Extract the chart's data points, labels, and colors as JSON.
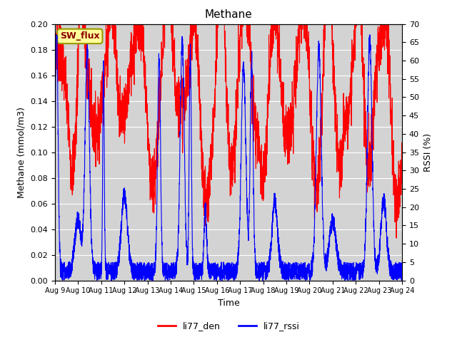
{
  "title": "Methane",
  "xlabel": "Time",
  "ylabel_left": "Methane (mmol/m3)",
  "ylabel_right": "RSSI (%)",
  "ylim_left": [
    0.0,
    0.2
  ],
  "ylim_right": [
    0,
    70
  ],
  "yticks_left": [
    0.0,
    0.02,
    0.04,
    0.06,
    0.08,
    0.1,
    0.12,
    0.14,
    0.16,
    0.18,
    0.2
  ],
  "yticks_right": [
    0,
    5,
    10,
    15,
    20,
    25,
    30,
    35,
    40,
    45,
    50,
    55,
    60,
    65,
    70
  ],
  "xtick_labels": [
    "Aug 9",
    "Aug 10",
    "Aug 11",
    "Aug 12",
    "Aug 13",
    "Aug 14",
    "Aug 15",
    "Aug 16",
    "Aug 17",
    "Aug 18",
    "Aug 19",
    "Aug 20",
    "Aug 21",
    "Aug 22",
    "Aug 23",
    "Aug 24"
  ],
  "color_den": "#FF0000",
  "color_rssi": "#0000FF",
  "bg_color": "#D3D3D3",
  "legend_box_facecolor": "#FFFF99",
  "legend_box_text": "SW_flux",
  "legend_box_edgecolor": "#999900"
}
